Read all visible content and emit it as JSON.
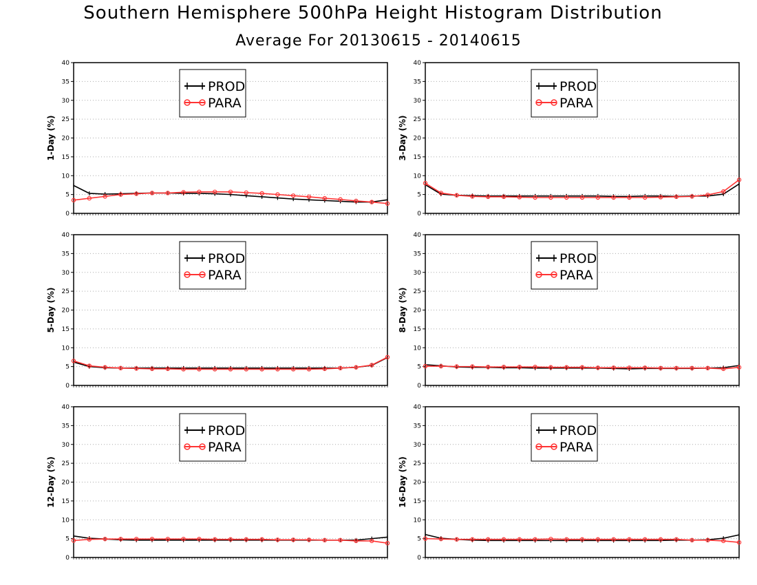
{
  "title": "Southern Hemisphere 500hPa Height Histogram Distribution",
  "subtitle": "Average For 20130615 - 20140615",
  "colors": {
    "PROD": "#000000",
    "PARA": "#ff3333"
  },
  "chart_data": [
    {
      "type": "line",
      "ylabel": "1-Day (%)",
      "ylim": [
        0,
        40
      ],
      "yticks": [
        0,
        5,
        10,
        15,
        20,
        25,
        30,
        35,
        40
      ],
      "grid": true,
      "legend": "top-center",
      "series": [
        {
          "name": "PROD",
          "values": [
            7.4,
            5.3,
            5.1,
            5.2,
            5.3,
            5.4,
            5.4,
            5.3,
            5.3,
            5.2,
            5.0,
            4.7,
            4.4,
            4.1,
            3.8,
            3.6,
            3.4,
            3.2,
            3.0,
            3.0,
            3.6
          ]
        },
        {
          "name": "PARA",
          "values": [
            3.5,
            4.0,
            4.5,
            5.0,
            5.2,
            5.4,
            5.4,
            5.6,
            5.7,
            5.7,
            5.7,
            5.5,
            5.3,
            5.0,
            4.7,
            4.4,
            4.0,
            3.7,
            3.3,
            3.0,
            2.6
          ]
        }
      ]
    },
    {
      "type": "line",
      "ylabel": "3-Day (%)",
      "ylim": [
        0,
        40
      ],
      "yticks": [
        0,
        5,
        10,
        15,
        20,
        25,
        30,
        35,
        40
      ],
      "grid": true,
      "legend": "top-center",
      "series": [
        {
          "name": "PROD",
          "values": [
            7.6,
            5.1,
            4.8,
            4.7,
            4.6,
            4.6,
            4.6,
            4.6,
            4.6,
            4.6,
            4.6,
            4.6,
            4.5,
            4.5,
            4.6,
            4.6,
            4.5,
            4.6,
            4.6,
            5.1,
            7.8
          ]
        },
        {
          "name": "PARA",
          "values": [
            8.0,
            5.4,
            4.8,
            4.5,
            4.4,
            4.4,
            4.3,
            4.2,
            4.2,
            4.2,
            4.2,
            4.2,
            4.2,
            4.2,
            4.2,
            4.3,
            4.4,
            4.5,
            4.9,
            5.8,
            8.9
          ]
        }
      ]
    },
    {
      "type": "line",
      "ylabel": "5-Day (%)",
      "ylim": [
        0,
        40
      ],
      "yticks": [
        0,
        5,
        10,
        15,
        20,
        25,
        30,
        35,
        40
      ],
      "grid": true,
      "legend": "top-center",
      "series": [
        {
          "name": "PROD",
          "values": [
            6.2,
            5.0,
            4.7,
            4.6,
            4.6,
            4.6,
            4.6,
            4.6,
            4.6,
            4.6,
            4.6,
            4.6,
            4.6,
            4.6,
            4.6,
            4.6,
            4.6,
            4.6,
            4.8,
            5.3,
            7.4
          ]
        },
        {
          "name": "PARA",
          "values": [
            6.5,
            5.2,
            4.8,
            4.6,
            4.5,
            4.4,
            4.4,
            4.3,
            4.3,
            4.3,
            4.3,
            4.3,
            4.3,
            4.3,
            4.3,
            4.3,
            4.4,
            4.6,
            4.8,
            5.4,
            7.5
          ]
        }
      ]
    },
    {
      "type": "line",
      "ylabel": "8-Day (%)",
      "ylim": [
        0,
        40
      ],
      "yticks": [
        0,
        5,
        10,
        15,
        20,
        25,
        30,
        35,
        40
      ],
      "grid": true,
      "legend": "top-center",
      "series": [
        {
          "name": "PROD",
          "values": [
            5.5,
            5.2,
            4.9,
            4.8,
            4.8,
            4.7,
            4.7,
            4.6,
            4.6,
            4.6,
            4.6,
            4.6,
            4.5,
            4.4,
            4.5,
            4.5,
            4.5,
            4.5,
            4.6,
            4.7,
            5.3
          ]
        },
        {
          "name": "PARA",
          "values": [
            5.1,
            5.1,
            5.0,
            5.0,
            4.9,
            4.9,
            4.9,
            4.9,
            4.8,
            4.8,
            4.8,
            4.7,
            4.7,
            4.7,
            4.7,
            4.6,
            4.6,
            4.6,
            4.6,
            4.4,
            4.8
          ]
        }
      ]
    },
    {
      "type": "line",
      "ylabel": "12-Day (%)",
      "ylim": [
        0,
        40
      ],
      "yticks": [
        0,
        5,
        10,
        15,
        20,
        25,
        30,
        35,
        40
      ],
      "grid": true,
      "legend": "top-center",
      "series": [
        {
          "name": "PROD",
          "values": [
            5.7,
            5.1,
            4.9,
            4.7,
            4.6,
            4.6,
            4.6,
            4.6,
            4.6,
            4.6,
            4.6,
            4.6,
            4.6,
            4.6,
            4.6,
            4.6,
            4.6,
            4.6,
            4.6,
            5.0,
            5.4
          ]
        },
        {
          "name": "PARA",
          "values": [
            4.5,
            4.8,
            4.9,
            4.9,
            4.9,
            4.9,
            4.9,
            4.9,
            4.9,
            4.8,
            4.8,
            4.8,
            4.8,
            4.7,
            4.7,
            4.7,
            4.6,
            4.6,
            4.4,
            4.4,
            3.8
          ]
        }
      ]
    },
    {
      "type": "line",
      "ylabel": "16-Day (%)",
      "ylim": [
        0,
        40
      ],
      "yticks": [
        0,
        5,
        10,
        15,
        20,
        25,
        30,
        35,
        40
      ],
      "grid": true,
      "legend": "top-center",
      "series": [
        {
          "name": "PROD",
          "values": [
            6.1,
            5.1,
            4.8,
            4.6,
            4.5,
            4.5,
            4.5,
            4.5,
            4.5,
            4.5,
            4.5,
            4.5,
            4.5,
            4.5,
            4.5,
            4.5,
            4.6,
            4.6,
            4.7,
            5.1,
            6.0
          ]
        },
        {
          "name": "PARA",
          "values": [
            5.0,
            4.9,
            4.8,
            4.8,
            4.8,
            4.8,
            4.8,
            4.8,
            4.9,
            4.8,
            4.8,
            4.8,
            4.8,
            4.8,
            4.8,
            4.8,
            4.8,
            4.6,
            4.6,
            4.4,
            4.0
          ]
        }
      ]
    }
  ]
}
